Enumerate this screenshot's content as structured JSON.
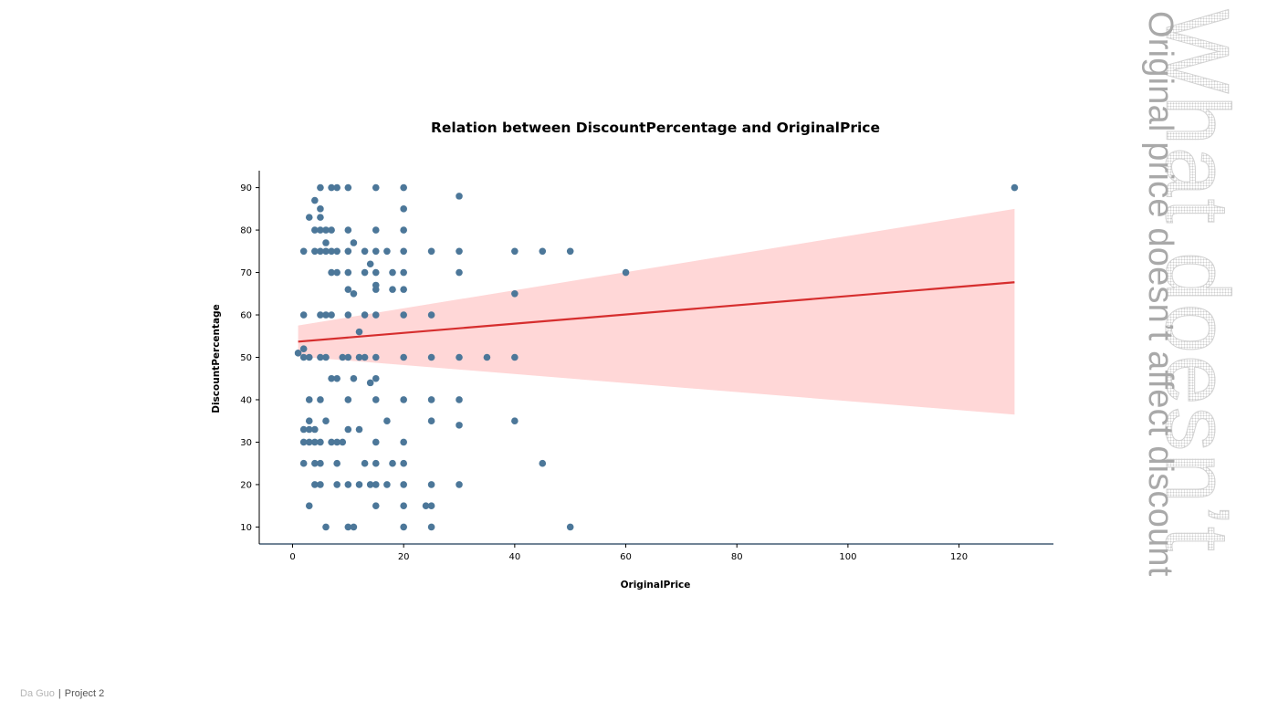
{
  "side": {
    "title": "What doesn’t",
    "subtitle": "Original price doesn’t affect discount"
  },
  "footer": {
    "author": "Da Guo",
    "separator": "|",
    "project": "Project 2"
  },
  "colors": {
    "points": "#4c7799",
    "fit_line": "#d62e2e",
    "ci_band": "#ffd7d7",
    "axis": "#1f3b57"
  },
  "chart_data": {
    "type": "scatter",
    "title": "Relation between DiscountPercentage and OriginalPrice",
    "xlabel": "OriginalPrice",
    "ylabel": "DiscountPercentage",
    "xlim": [
      -6,
      137
    ],
    "ylim": [
      6,
      94
    ],
    "xticks": [
      0,
      20,
      40,
      60,
      80,
      100,
      120
    ],
    "yticks": [
      10,
      20,
      30,
      40,
      50,
      60,
      70,
      80,
      90
    ],
    "grid": false,
    "points": [
      [
        1,
        51
      ],
      [
        2,
        52
      ],
      [
        2,
        50
      ],
      [
        2,
        60
      ],
      [
        2,
        75
      ],
      [
        2,
        33
      ],
      [
        2,
        30
      ],
      [
        2,
        25
      ],
      [
        3,
        83
      ],
      [
        3,
        50
      ],
      [
        3,
        40
      ],
      [
        3,
        35
      ],
      [
        3,
        33
      ],
      [
        3,
        30
      ],
      [
        3,
        15
      ],
      [
        4,
        87
      ],
      [
        4,
        80
      ],
      [
        4,
        75
      ],
      [
        4,
        33
      ],
      [
        4,
        30
      ],
      [
        4,
        25
      ],
      [
        4,
        20
      ],
      [
        5,
        90
      ],
      [
        5,
        85
      ],
      [
        5,
        83
      ],
      [
        5,
        80
      ],
      [
        5,
        75
      ],
      [
        5,
        60
      ],
      [
        5,
        50
      ],
      [
        5,
        40
      ],
      [
        5,
        30
      ],
      [
        5,
        25
      ],
      [
        5,
        20
      ],
      [
        6,
        80
      ],
      [
        6,
        77
      ],
      [
        6,
        75
      ],
      [
        6,
        60
      ],
      [
        6,
        50
      ],
      [
        6,
        35
      ],
      [
        6,
        10
      ],
      [
        7,
        90
      ],
      [
        7,
        80
      ],
      [
        7,
        75
      ],
      [
        7,
        70
      ],
      [
        7,
        60
      ],
      [
        7,
        45
      ],
      [
        7,
        30
      ],
      [
        8,
        90
      ],
      [
        8,
        75
      ],
      [
        8,
        70
      ],
      [
        8,
        45
      ],
      [
        8,
        25
      ],
      [
        8,
        20
      ],
      [
        8,
        30
      ],
      [
        9,
        50
      ],
      [
        9,
        30
      ],
      [
        10,
        90
      ],
      [
        10,
        80
      ],
      [
        10,
        75
      ],
      [
        10,
        70
      ],
      [
        10,
        66
      ],
      [
        10,
        60
      ],
      [
        10,
        50
      ],
      [
        10,
        40
      ],
      [
        10,
        33
      ],
      [
        10,
        20
      ],
      [
        10,
        10
      ],
      [
        11,
        77
      ],
      [
        11,
        65
      ],
      [
        11,
        45
      ],
      [
        11,
        10
      ],
      [
        12,
        56
      ],
      [
        12,
        50
      ],
      [
        12,
        33
      ],
      [
        12,
        20
      ],
      [
        13,
        75
      ],
      [
        13,
        70
      ],
      [
        13,
        60
      ],
      [
        13,
        50
      ],
      [
        13,
        25
      ],
      [
        14,
        72
      ],
      [
        14,
        44
      ],
      [
        14,
        20
      ],
      [
        15,
        90
      ],
      [
        15,
        80
      ],
      [
        15,
        75
      ],
      [
        15,
        70
      ],
      [
        15,
        67
      ],
      [
        15,
        66
      ],
      [
        15,
        60
      ],
      [
        15,
        50
      ],
      [
        15,
        45
      ],
      [
        15,
        40
      ],
      [
        15,
        30
      ],
      [
        15,
        25
      ],
      [
        15,
        20
      ],
      [
        15,
        15
      ],
      [
        17,
        75
      ],
      [
        17,
        35
      ],
      [
        17,
        20
      ],
      [
        18,
        70
      ],
      [
        18,
        66
      ],
      [
        18,
        25
      ],
      [
        20,
        90
      ],
      [
        20,
        85
      ],
      [
        20,
        80
      ],
      [
        20,
        75
      ],
      [
        20,
        70
      ],
      [
        20,
        66
      ],
      [
        20,
        60
      ],
      [
        20,
        50
      ],
      [
        20,
        40
      ],
      [
        20,
        30
      ],
      [
        20,
        25
      ],
      [
        20,
        20
      ],
      [
        20,
        15
      ],
      [
        20,
        10
      ],
      [
        24,
        15
      ],
      [
        25,
        75
      ],
      [
        25,
        60
      ],
      [
        25,
        50
      ],
      [
        25,
        40
      ],
      [
        25,
        35
      ],
      [
        25,
        20
      ],
      [
        25,
        15
      ],
      [
        25,
        10
      ],
      [
        30,
        88
      ],
      [
        30,
        75
      ],
      [
        30,
        70
      ],
      [
        30,
        50
      ],
      [
        30,
        40
      ],
      [
        30,
        34
      ],
      [
        30,
        20
      ],
      [
        35,
        50
      ],
      [
        40,
        75
      ],
      [
        40,
        65
      ],
      [
        40,
        50
      ],
      [
        40,
        35
      ],
      [
        45,
        75
      ],
      [
        45,
        25
      ],
      [
        50,
        75
      ],
      [
        50,
        10
      ],
      [
        60,
        70
      ],
      [
        130,
        90
      ]
    ],
    "regression": {
      "x": [
        1,
        130
      ],
      "y": [
        53.7,
        67.7
      ],
      "ci_lower": [
        50.2,
        36.5
      ],
      "ci_upper": [
        57.5,
        85.0
      ]
    }
  }
}
